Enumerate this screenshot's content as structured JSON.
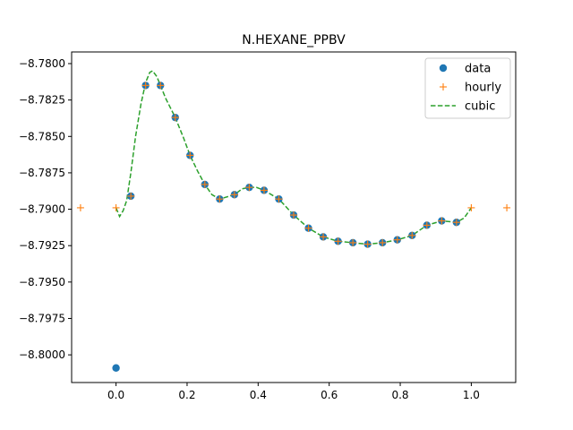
{
  "chart_data": {
    "type": "line",
    "title": "N.HEXANE_PPBV",
    "xlabel": "",
    "ylabel": "",
    "xlim": [
      -0.125,
      1.125
    ],
    "ylim": [
      -8.8019,
      -8.7792
    ],
    "x_ticks": [
      0.0,
      0.2,
      0.4,
      0.6,
      0.8,
      1.0
    ],
    "x_tick_labels": [
      "0.0",
      "0.2",
      "0.4",
      "0.6",
      "0.8",
      "1.0"
    ],
    "y_ticks": [
      -8.78,
      -8.7825,
      -8.785,
      -8.7875,
      -8.79,
      -8.7925,
      -8.795,
      -8.7975,
      -8.8
    ],
    "y_tick_labels": [
      "−8.7800",
      "−8.7825",
      "−8.7850",
      "−8.7875",
      "−8.7900",
      "−8.7925",
      "−8.7950",
      "−8.7975",
      "−8.8000"
    ],
    "grid": false,
    "legend_position": "top-right",
    "colors": {
      "data": "#1f77b4",
      "hourly": "#ff7f0e",
      "cubic": "#2ca02c"
    },
    "series": [
      {
        "name": "data",
        "style": "markers-circle",
        "x": [
          0.0,
          0.0417,
          0.0833,
          0.125,
          0.1667,
          0.2083,
          0.25,
          0.2917,
          0.3333,
          0.375,
          0.4167,
          0.4583,
          0.5,
          0.5417,
          0.5833,
          0.625,
          0.6667,
          0.7083,
          0.75,
          0.7917,
          0.8333,
          0.875,
          0.9167,
          0.9583
        ],
        "y": [
          -8.8009,
          -8.7891,
          -8.7815,
          -8.7815,
          -8.7837,
          -8.7863,
          -8.7883,
          -8.7893,
          -8.789,
          -8.7885,
          -8.7887,
          -8.7893,
          -8.7904,
          -8.7913,
          -8.7919,
          -8.7922,
          -8.7923,
          -8.7924,
          -8.7923,
          -8.7921,
          -8.7918,
          -8.7911,
          -8.7908,
          -8.7909
        ]
      },
      {
        "name": "hourly",
        "style": "markers-plus",
        "x": [
          -0.1,
          0.0,
          0.0417,
          0.0833,
          0.125,
          0.1667,
          0.2083,
          0.25,
          0.2917,
          0.3333,
          0.375,
          0.4167,
          0.4583,
          0.5,
          0.5417,
          0.5833,
          0.625,
          0.6667,
          0.7083,
          0.75,
          0.7917,
          0.8333,
          0.875,
          0.9167,
          0.9583,
          1.0,
          1.1
        ],
        "y": [
          -8.7899,
          -8.7899,
          -8.7891,
          -8.7815,
          -8.7815,
          -8.7837,
          -8.7863,
          -8.7883,
          -8.7893,
          -8.789,
          -8.7885,
          -8.7887,
          -8.7893,
          -8.7904,
          -8.7913,
          -8.7919,
          -8.7922,
          -8.7923,
          -8.7924,
          -8.7923,
          -8.7921,
          -8.7918,
          -8.7911,
          -8.7908,
          -8.7909,
          -8.7899,
          -8.7899
        ]
      },
      {
        "name": "cubic",
        "style": "dashed-line",
        "x": [
          0.0,
          0.01,
          0.02,
          0.03,
          0.0417,
          0.055,
          0.07,
          0.0833,
          0.095,
          0.103,
          0.115,
          0.125,
          0.14,
          0.1667,
          0.19,
          0.2083,
          0.23,
          0.25,
          0.27,
          0.2917,
          0.3333,
          0.355,
          0.375,
          0.395,
          0.4167,
          0.4583,
          0.5,
          0.5417,
          0.5833,
          0.625,
          0.6667,
          0.7083,
          0.75,
          0.7917,
          0.8333,
          0.875,
          0.9167,
          0.9583,
          0.98,
          1.0
        ],
        "y": [
          -8.7899,
          -8.7905,
          -8.7901,
          -8.7894,
          -8.7875,
          -8.785,
          -8.7828,
          -8.7813,
          -8.7806,
          -8.7805,
          -8.7809,
          -8.7815,
          -8.7824,
          -8.7837,
          -8.7851,
          -8.7863,
          -8.7874,
          -8.7883,
          -8.789,
          -8.7893,
          -8.789,
          -8.7886,
          -8.7885,
          -8.7885,
          -8.7887,
          -8.7893,
          -8.7904,
          -8.7913,
          -8.7919,
          -8.7922,
          -8.7923,
          -8.7924,
          -8.7923,
          -8.7921,
          -8.7918,
          -8.7911,
          -8.7908,
          -8.7909,
          -8.7906,
          -8.7899
        ]
      }
    ]
  }
}
